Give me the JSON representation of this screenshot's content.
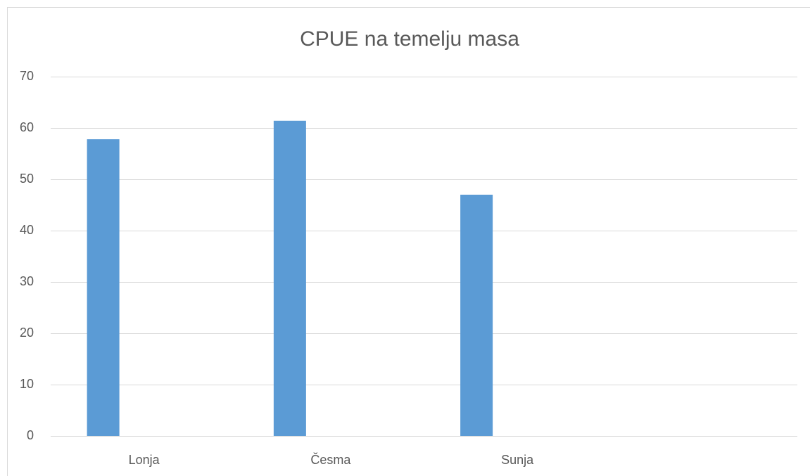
{
  "chart_data": {
    "type": "bar",
    "title": "CPUE na temelju masa",
    "categories": [
      "Lonja",
      "Česma",
      "Sunja",
      null
    ],
    "values": [
      57.8,
      61.4,
      47,
      null
    ],
    "color": "#5b9bd5",
    "ylim": [
      0,
      70
    ],
    "yticks": [
      0,
      10,
      20,
      30,
      40,
      50,
      60,
      70
    ],
    "grid": true
  }
}
